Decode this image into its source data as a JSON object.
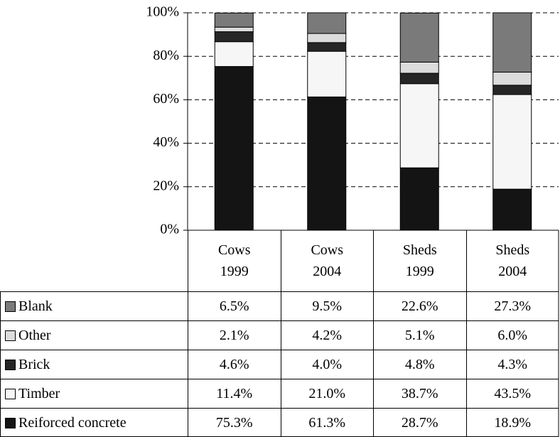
{
  "chart_data": {
    "type": "stacked_bar",
    "categories": [
      "Cows\n1999",
      "Cows\n2004",
      "Sheds\n1999",
      "Sheds\n2004"
    ],
    "series": [
      {
        "name": "Reiforced concrete",
        "color": "#141414",
        "values": [
          75.3,
          61.3,
          28.7,
          18.9
        ],
        "value_labels": [
          "75.3%",
          "61.3%",
          "28.7%",
          "18.9%"
        ]
      },
      {
        "name": "Timber",
        "color": "#f6f6f6",
        "values": [
          11.4,
          21.0,
          38.7,
          43.5
        ],
        "value_labels": [
          "11.4%",
          "21.0%",
          "38.7%",
          "43.5%"
        ]
      },
      {
        "name": "Brick",
        "color": "#262626",
        "values": [
          4.6,
          4.0,
          4.8,
          4.3
        ],
        "value_labels": [
          "4.6%",
          "4.0%",
          "4.8%",
          "4.3%"
        ]
      },
      {
        "name": "Other",
        "color": "#dcdcdc",
        "values": [
          2.1,
          4.2,
          5.1,
          6.0
        ],
        "value_labels": [
          "2.1%",
          "4.2%",
          "5.1%",
          "6.0%"
        ]
      },
      {
        "name": "Blank",
        "color": "#7a7a7a",
        "values": [
          6.5,
          9.5,
          22.6,
          27.3
        ],
        "value_labels": [
          "6.5%",
          "9.5%",
          "22.6%",
          "27.3%"
        ]
      }
    ],
    "ylim": [
      0,
      100
    ],
    "yticks": [
      {
        "value": 0,
        "label": "0%"
      },
      {
        "value": 20,
        "label": "20%"
      },
      {
        "value": 40,
        "label": "40%"
      },
      {
        "value": 60,
        "label": "60%"
      },
      {
        "value": 80,
        "label": "80%"
      },
      {
        "value": 100,
        "label": "100%"
      }
    ],
    "grid": true
  }
}
